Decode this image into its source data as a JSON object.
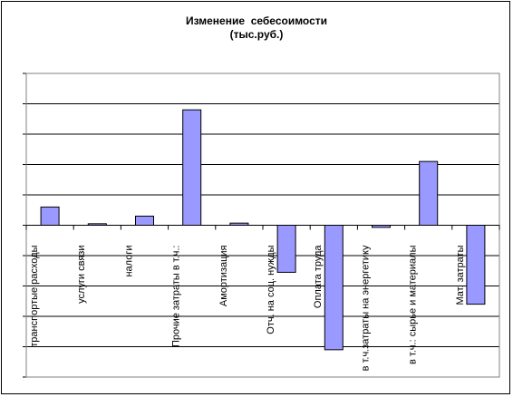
{
  "chart_data": {
    "type": "bar",
    "title": "Изменение  себесоимости",
    "subtitle": "(тыс.руб.)",
    "xlabel": "",
    "ylabel": "",
    "ylim": [
      -5,
      5
    ],
    "grid": true,
    "legend": "none",
    "bar_color": "#9999ff",
    "categories": [
      "транспортые расходы",
      "услуги связи",
      "налоги",
      "Прочие затраты в т.ч.:",
      "Амортизация",
      "Отч. на соц. нужды",
      "Оплата труда",
      "в т.ч.затраты на энергетику",
      "в т.ч.: сырье и материалы",
      "Мат. затраты"
    ],
    "values": [
      0.6,
      0.05,
      0.3,
      3.8,
      0.07,
      -1.55,
      -4.1,
      -0.07,
      2.1,
      -2.6
    ]
  }
}
